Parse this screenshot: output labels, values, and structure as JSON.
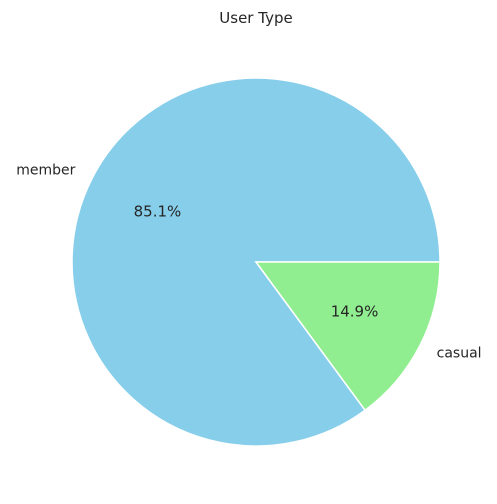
{
  "chart_data": {
    "type": "pie",
    "title": "User Type",
    "labels": [
      "member",
      "casual"
    ],
    "values": [
      85.1,
      14.9
    ],
    "percent_labels": [
      "85.1%",
      "14.9%"
    ],
    "colors": [
      "#87CEEB",
      "#90EE90"
    ],
    "edge_color": "#ffffff"
  }
}
